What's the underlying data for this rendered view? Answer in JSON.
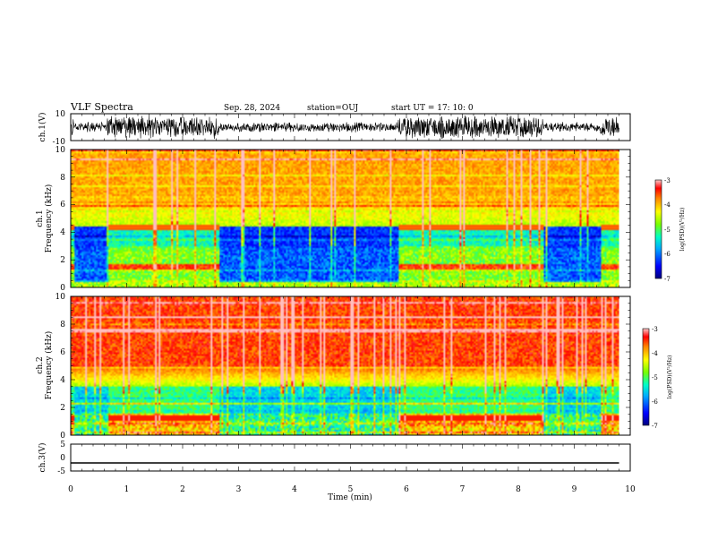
{
  "header": {
    "title": "VLF Spectra",
    "date": "Sep. 28, 2024",
    "station": "station=OUJ",
    "start": "start  UT =   17: 10: 0"
  },
  "chart_data": [
    {
      "type": "line",
      "panel": "ch1-waveform",
      "ylabel": "ch.1(V)",
      "ylim": [
        -10,
        10
      ],
      "ytick_labels": [
        "10",
        "-10"
      ],
      "xlim": [
        0,
        10
      ]
    },
    {
      "type": "heatmap",
      "panel": "ch1-spectrogram",
      "ylabel": "ch.1\nFrequency (kHz)",
      "ylim": [
        0,
        10
      ],
      "ytick_labels": [
        "0",
        "2",
        "4",
        "6",
        "8",
        "10"
      ],
      "xlim": [
        0,
        10
      ],
      "data_extent_min": 9.8,
      "colorbar": {
        "label": "log(PSD)(V²/Hz)",
        "range": [
          -7,
          -3
        ],
        "tick_labels": [
          "-3",
          "-4",
          "-5",
          "-6",
          "-7"
        ]
      }
    },
    {
      "type": "heatmap",
      "panel": "ch2-spectrogram",
      "ylabel": "ch.2\nFrequency (kHz)",
      "ylim": [
        0,
        10
      ],
      "ytick_labels": [
        "0",
        "2",
        "4",
        "6",
        "8",
        "10"
      ],
      "xlim": [
        0,
        10
      ],
      "data_extent_min": 9.8,
      "colorbar": {
        "label": "log(PSD)(V²/Hz)",
        "range": [
          -7,
          -3
        ],
        "tick_labels": [
          "-3",
          "-4",
          "-5",
          "-6",
          "-7"
        ]
      }
    },
    {
      "type": "line",
      "panel": "ch3-waveform",
      "ylabel": "ch.3(V)",
      "ylim": [
        -5,
        5
      ],
      "ytick_labels": [
        "5",
        "0",
        "-5"
      ],
      "constant_value": -2.0,
      "xlim": [
        0,
        10
      ],
      "xlabel": "Time (min)",
      "xtick_labels": [
        "0",
        "1",
        "2",
        "3",
        "4",
        "5",
        "6",
        "7",
        "8",
        "9",
        "10"
      ]
    }
  ]
}
